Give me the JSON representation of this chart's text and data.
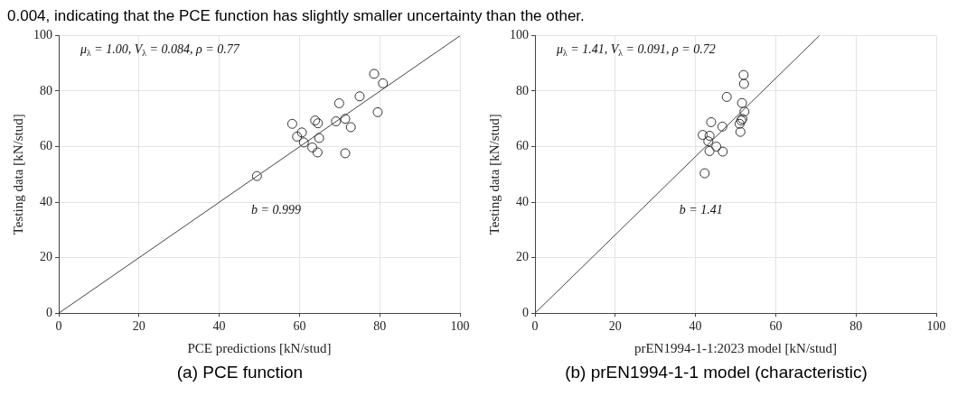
{
  "chart_data": [
    {
      "type": "scatter",
      "xlabel": "PCE predictions [kN/stud]",
      "ylabel": "Testing data [kN/stud]",
      "xlim": [
        0,
        100
      ],
      "ylim": [
        0,
        100
      ],
      "xticks": [
        0,
        20,
        40,
        60,
        80,
        100
      ],
      "yticks": [
        0,
        20,
        40,
        60,
        80,
        100
      ],
      "grid": true,
      "legend": false,
      "marker": "circle",
      "series": [
        {
          "color": "#333333",
          "x": [
            78.6,
            80.8,
            75.0,
            69.9,
            79.5,
            58.2,
            63.9,
            64.6,
            69.1,
            71.4,
            72.8,
            60.6,
            59.4,
            64.9,
            61.1,
            63.2,
            64.5,
            71.4,
            49.4
          ],
          "values": [
            86.2,
            82.8,
            78.1,
            75.6,
            72.4,
            68.2,
            69.4,
            68.4,
            69.1,
            70.0,
            67.0,
            65.1,
            63.6,
            63.1,
            61.5,
            59.7,
            57.9,
            57.6,
            49.4
          ]
        },
        {
          "type": "line",
          "color": "#444444",
          "marker": "none",
          "x": [
            0,
            100
          ],
          "values": [
            0,
            99.9
          ]
        }
      ],
      "annotations": [
        "μ$_{λ}$ = 1.00, V$_{λ}$ = 0.084, ρ = 0.77",
        "b = 0.999",
        "(a) PCE function",
        "0.004, indicating that the PCE function has slightly smaller uncertainty than the other."
      ]
    },
    {
      "type": "scatter",
      "xlabel": "prEN1994-1-1:2023 model [kN/stud]",
      "ylabel": "Testing data [kN/stud]",
      "xlim": [
        0,
        100
      ],
      "ylim": [
        0,
        100
      ],
      "xticks": [
        0,
        20,
        40,
        60,
        80,
        100
      ],
      "yticks": [
        0,
        20,
        40,
        60,
        80,
        100
      ],
      "grid": true,
      "legend": false,
      "marker": "circle",
      "series": [
        {
          "color": "#333333",
          "x": [
            52.0,
            52.1,
            47.8,
            51.6,
            52.2,
            51.7,
            51.4,
            51.0,
            43.9,
            46.7,
            51.2,
            41.8,
            43.5,
            43.2,
            43.5,
            45.2,
            46.8,
            42.3
          ],
          "values": [
            85.8,
            82.6,
            77.9,
            75.7,
            72.6,
            70.0,
            69.4,
            68.2,
            68.8,
            67.2,
            65.3,
            64.2,
            63.9,
            61.9,
            58.4,
            60.0,
            58.2,
            50.4
          ]
        },
        {
          "type": "line",
          "color": "#444444",
          "marker": "none",
          "x": [
            0,
            70.92
          ],
          "values": [
            0,
            100
          ]
        }
      ],
      "annotations": [
        "μ$_{λ}$ = 1.41, V$_{λ}$ = 0.091, ρ = 0.72",
        "b = 1.41",
        "(b) prEN1994-1-1 model (characteristic)"
      ]
    }
  ]
}
